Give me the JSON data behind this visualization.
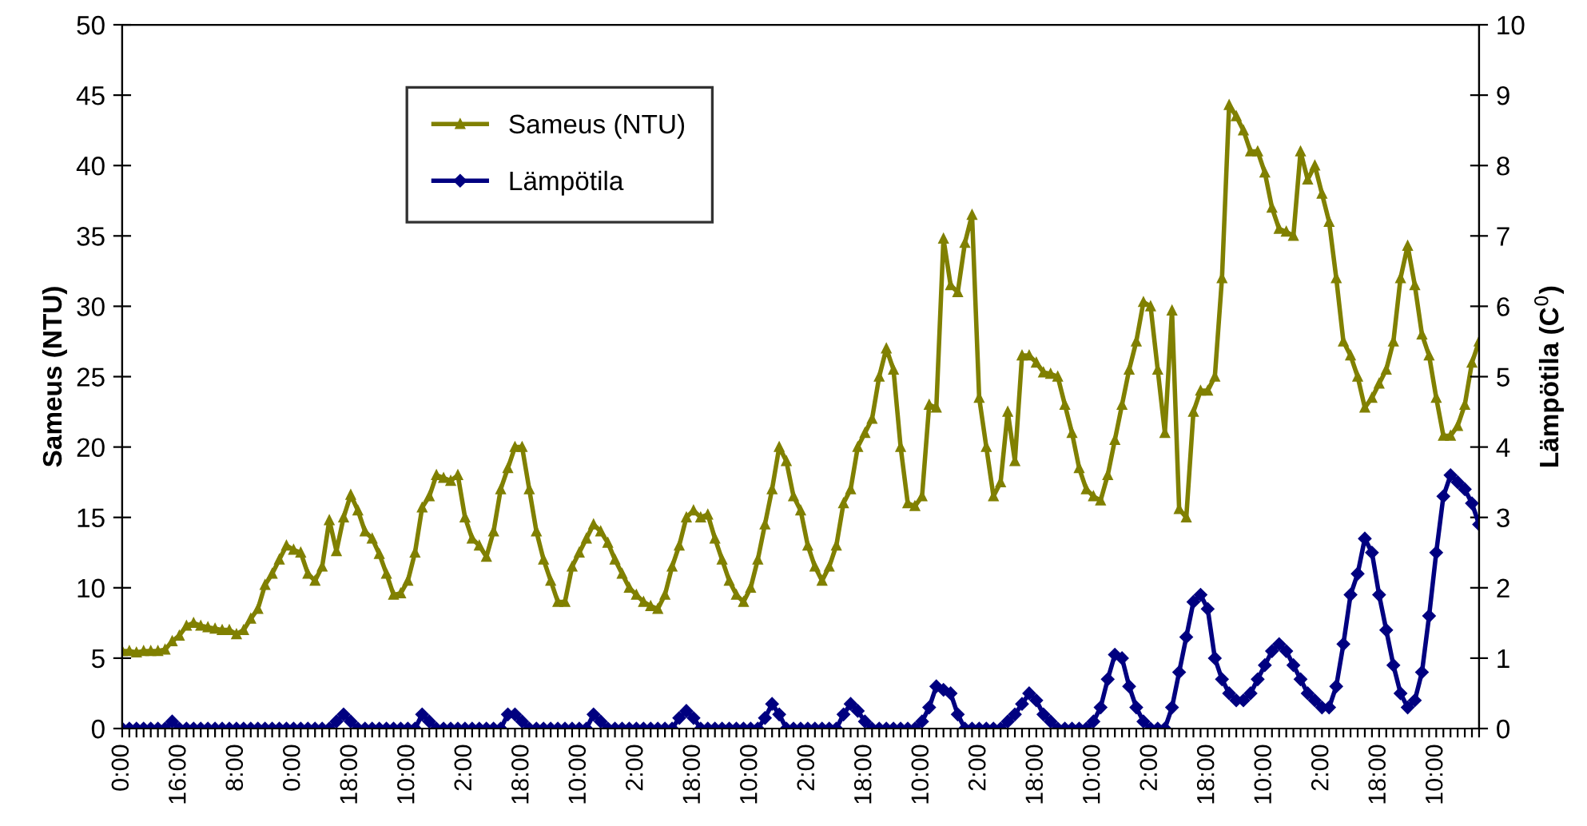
{
  "chart_data": {
    "type": "line",
    "ylabel": "Sameus (NTU)",
    "y2label": "Lämpötila (C$^{0}$)",
    "categories": [
      "0:00",
      null,
      null,
      null,
      null,
      null,
      null,
      null,
      "16:00",
      null,
      null,
      null,
      null,
      null,
      null,
      null,
      "8:00",
      null,
      null,
      null,
      null,
      null,
      null,
      null,
      "0:00",
      null,
      null,
      null,
      null,
      null,
      null,
      null,
      "18:00",
      null,
      null,
      null,
      null,
      null,
      null,
      null,
      "10:00",
      null,
      null,
      null,
      null,
      null,
      null,
      null,
      "2:00",
      null,
      null,
      null,
      null,
      null,
      null,
      null,
      "18:00",
      null,
      null,
      null,
      null,
      null,
      null,
      null,
      "10:00",
      null,
      null,
      null,
      null,
      null,
      null,
      null,
      "2:00",
      null,
      null,
      null,
      null,
      null,
      null,
      null,
      "18:00",
      null,
      null,
      null,
      null,
      null,
      null,
      null,
      "10:00",
      null,
      null,
      null,
      null,
      null,
      null,
      null,
      "2:00",
      null,
      null,
      null,
      null,
      null,
      null,
      null,
      "18:00",
      null,
      null,
      null,
      null,
      null,
      null,
      null,
      "10:00",
      null,
      null,
      null,
      null,
      null,
      null,
      null,
      "2:00",
      null,
      null,
      null,
      null,
      null,
      null,
      null,
      "18:00",
      null,
      null,
      null,
      null,
      null,
      null,
      null,
      "10:00",
      null,
      null,
      null,
      null,
      null,
      null,
      null,
      "2:00",
      null,
      null,
      null,
      null,
      null,
      null,
      null,
      "18:00",
      null,
      null,
      null,
      null,
      null,
      null,
      null,
      "10:00",
      null,
      null,
      null,
      null,
      null,
      null,
      null,
      "2:00",
      null,
      null,
      null,
      null,
      null,
      null,
      null,
      "18:00",
      null,
      null,
      null,
      null,
      null,
      null,
      null,
      "10:00",
      null,
      null,
      null,
      null,
      null,
      null
    ],
    "series": [
      {
        "name": "Sameus (NTU)",
        "color": "#808000",
        "marker": "triangle",
        "values": [
          5.5,
          5.5,
          5.4,
          5.5,
          5.5,
          5.5,
          5.6,
          6.2,
          6.6,
          7.3,
          7.5,
          7.3,
          7.2,
          7.1,
          7.0,
          7.0,
          6.7,
          7.0,
          7.8,
          8.5,
          10.2,
          11.0,
          12.0,
          13.0,
          12.7,
          12.5,
          11.0,
          10.5,
          11.5,
          14.8,
          12.6,
          15.0,
          16.6,
          15.5,
          14.0,
          13.5,
          12.4,
          11.0,
          9.5,
          9.6,
          10.5,
          12.5,
          15.7,
          16.5,
          18.0,
          17.8,
          17.6,
          18.0,
          15.0,
          13.5,
          13.0,
          12.2,
          14.0,
          17.0,
          18.5,
          20.0,
          20.0,
          17.0,
          14.0,
          12.0,
          10.5,
          9.0,
          9.0,
          11.5,
          12.5,
          13.5,
          14.5,
          14.0,
          13.2,
          12.0,
          11.0,
          10.0,
          9.5,
          9.0,
          8.7,
          8.5,
          9.5,
          11.5,
          13.0,
          15.0,
          15.5,
          15.0,
          15.2,
          13.5,
          12.0,
          10.5,
          9.5,
          9.0,
          10.0,
          12.0,
          14.5,
          17.0,
          20.0,
          19.0,
          16.5,
          15.5,
          13.0,
          11.5,
          10.5,
          11.5,
          13.0,
          16.0,
          17.0,
          20.0,
          21.0,
          22.0,
          25.0,
          27.0,
          25.5,
          20.0,
          16.0,
          15.8,
          16.5,
          23.0,
          22.8,
          34.8,
          31.5,
          31.0,
          34.5,
          36.5,
          23.5,
          20.0,
          16.5,
          17.5,
          22.5,
          19.0,
          26.5,
          26.5,
          26.0,
          25.3,
          25.2,
          25.0,
          23.0,
          21.0,
          18.5,
          17.0,
          16.5,
          16.2,
          18.0,
          20.5,
          23.0,
          25.5,
          27.5,
          30.3,
          30.0,
          25.5,
          21.0,
          29.7,
          15.6,
          15.0,
          22.5,
          24.0,
          24.0,
          25.0,
          32.0,
          44.3,
          43.5,
          42.5,
          41.0,
          41.0,
          39.5,
          37.0,
          35.5,
          35.3,
          35.0,
          41.0,
          39.0,
          40.0,
          38.0,
          36.0,
          32.0,
          27.5,
          26.5,
          25.0,
          22.8,
          23.5,
          24.5,
          25.5,
          27.5,
          32.0,
          34.3,
          31.5,
          28.0,
          26.5,
          23.5,
          20.8,
          20.8,
          21.5,
          23.0,
          26.0,
          27.5
        ]
      },
      {
        "name": "Lämpötila",
        "color": "#000080",
        "marker": "diamond",
        "axis": "y2",
        "values": [
          0,
          0,
          0,
          0,
          0,
          0,
          0,
          0.1,
          0,
          0,
          0,
          0,
          0,
          0,
          0,
          0,
          0,
          0,
          0,
          0,
          0,
          0,
          0,
          0,
          0,
          0,
          0,
          0,
          0,
          0,
          0.1,
          0.2,
          0.1,
          0,
          0,
          0,
          0,
          0,
          0,
          0,
          0,
          0,
          0.2,
          0.1,
          0,
          0,
          0,
          0,
          0,
          0,
          0,
          0,
          0,
          0,
          0.2,
          0.2,
          0.1,
          0,
          0,
          0,
          0,
          0,
          0,
          0,
          0,
          0,
          0.2,
          0.1,
          0,
          0,
          0,
          0,
          0,
          0,
          0,
          0,
          0,
          0,
          0.15,
          0.25,
          0.15,
          0,
          0,
          0,
          0,
          0,
          0,
          0,
          0,
          0,
          0.15,
          0.35,
          0.2,
          0,
          0,
          0,
          0,
          0,
          0,
          0,
          0,
          0.2,
          0.35,
          0.25,
          0.1,
          0,
          0,
          0,
          0,
          0,
          0,
          0,
          0.1,
          0.3,
          0.6,
          0.55,
          0.5,
          0.2,
          0,
          0,
          0,
          0,
          0,
          0,
          0.1,
          0.2,
          0.35,
          0.5,
          0.4,
          0.2,
          0.1,
          0,
          0,
          0,
          0,
          0,
          0.1,
          0.3,
          0.7,
          1.05,
          1.0,
          0.6,
          0.3,
          0.1,
          0,
          0,
          0,
          0.3,
          0.8,
          1.3,
          1.8,
          1.9,
          1.7,
          1.0,
          0.7,
          0.5,
          0.4,
          0.4,
          0.5,
          0.7,
          0.9,
          1.1,
          1.2,
          1.1,
          0.9,
          0.7,
          0.5,
          0.4,
          0.3,
          0.3,
          0.6,
          1.2,
          1.9,
          2.2,
          2.7,
          2.5,
          1.9,
          1.4,
          0.9,
          0.5,
          0.3,
          0.4,
          0.8,
          1.6,
          2.5,
          3.3,
          3.6,
          3.5,
          3.4,
          3.2,
          2.9
        ]
      }
    ],
    "ylim": [
      0,
      50
    ],
    "yticks": [
      0,
      5,
      10,
      15,
      20,
      25,
      30,
      35,
      40,
      45,
      50
    ],
    "y2lim": [
      0,
      10
    ],
    "y2ticks": [
      0,
      1,
      2,
      3,
      4,
      5,
      6,
      7,
      8,
      9,
      10
    ],
    "grid": false,
    "legend": "top left",
    "line_style": "solid"
  }
}
